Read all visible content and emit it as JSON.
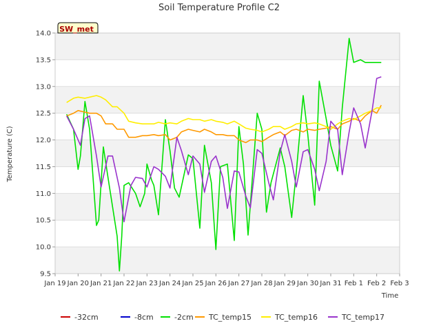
{
  "chart_data": {
    "type": "line",
    "title": "Soil Temperature Profile C2",
    "xlabel": "Time",
    "ylabel": "Temperature (C)",
    "badge": "SW_met",
    "ylim": [
      9.5,
      14.0
    ],
    "yticks": [
      "9.5",
      "10.0",
      "10.5",
      "11.0",
      "11.5",
      "12.0",
      "12.5",
      "13.0",
      "13.5",
      "14.0"
    ],
    "xlim": [
      0,
      15
    ],
    "xticks": [
      "Jan 19",
      "Jan 20",
      "Jan 21",
      "Jan 22",
      "Jan 23",
      "Jan 24",
      "Jan 25",
      "Jan 26",
      "Jan 27",
      "Jan 28",
      "Jan 29",
      "Jan 30",
      "Jan 31",
      "Feb 1",
      "Feb 2",
      "Feb 3"
    ],
    "grid": "horizontal bands",
    "legend_position": "bottom",
    "series": [
      {
        "name": "-32cm",
        "color": "#cc0000",
        "x": [],
        "y": []
      },
      {
        "name": "-8cm",
        "color": "#0000cc",
        "x": [],
        "y": []
      },
      {
        "name": "-2cm",
        "color": "#00e000",
        "x": [
          0.5,
          0.8,
          1.0,
          1.1,
          1.3,
          1.5,
          1.8,
          1.9,
          2.1,
          2.3,
          2.7,
          2.8,
          2.9,
          3.0,
          3.2,
          3.5,
          3.7,
          3.9,
          4.0,
          4.2,
          4.3,
          4.5,
          4.8,
          5.0,
          5.2,
          5.4,
          5.8,
          6.0,
          6.3,
          6.5,
          6.8,
          7.0,
          7.2,
          7.5,
          7.8,
          8.0,
          8.2,
          8.4,
          8.8,
          9.0,
          9.2,
          9.4,
          9.8,
          10.0,
          10.3,
          10.5,
          10.8,
          11.0,
          11.3,
          11.5,
          11.8,
          12.0,
          12.3,
          12.5,
          12.8,
          13.0,
          13.3,
          13.5,
          13.8,
          14.0,
          14.2
        ],
        "y": [
          12.48,
          12.2,
          11.45,
          11.7,
          12.72,
          12.2,
          10.4,
          10.5,
          11.87,
          11.3,
          10.2,
          9.55,
          10.2,
          11.15,
          11.2,
          11.0,
          10.75,
          11.0,
          11.55,
          11.25,
          11.15,
          10.6,
          12.38,
          11.8,
          11.1,
          10.93,
          11.72,
          11.65,
          10.35,
          11.9,
          11.2,
          9.95,
          11.5,
          11.55,
          10.12,
          12.25,
          11.55,
          10.22,
          12.5,
          12.2,
          10.65,
          11.2,
          11.85,
          11.5,
          10.55,
          11.4,
          12.83,
          12.1,
          10.78,
          13.1,
          12.4,
          11.9,
          11.42,
          12.6,
          13.9,
          13.45,
          13.5,
          13.45,
          13.45,
          13.45,
          13.45
        ]
      },
      {
        "name": "TC_temp15",
        "color": "#ff9900",
        "x": [
          0.5,
          0.8,
          1.0,
          1.3,
          1.5,
          1.8,
          2.0,
          2.2,
          2.5,
          2.7,
          3.0,
          3.2,
          3.5,
          3.8,
          4.0,
          4.3,
          4.5,
          4.8,
          5.0,
          5.3,
          5.5,
          5.8,
          6.0,
          6.3,
          6.5,
          6.8,
          7.0,
          7.3,
          7.5,
          7.8,
          8.0,
          8.3,
          8.5,
          8.8,
          9.0,
          9.3,
          9.5,
          9.8,
          10.0,
          10.3,
          10.5,
          10.8,
          11.0,
          11.3,
          11.5,
          11.8,
          12.0,
          12.3,
          12.5,
          12.8,
          13.0,
          13.3,
          13.5,
          13.8,
          14.0,
          14.2
        ],
        "y": [
          12.45,
          12.5,
          12.55,
          12.52,
          12.5,
          12.5,
          12.45,
          12.3,
          12.3,
          12.2,
          12.2,
          12.05,
          12.05,
          12.08,
          12.08,
          12.1,
          12.08,
          12.1,
          12.0,
          12.05,
          12.15,
          12.2,
          12.18,
          12.15,
          12.2,
          12.15,
          12.1,
          12.1,
          12.08,
          12.08,
          12.0,
          11.95,
          12.0,
          12.0,
          11.97,
          12.05,
          12.1,
          12.15,
          12.08,
          12.18,
          12.2,
          12.15,
          12.2,
          12.18,
          12.2,
          12.22,
          12.25,
          12.2,
          12.3,
          12.35,
          12.4,
          12.35,
          12.45,
          12.55,
          12.5,
          12.65
        ]
      },
      {
        "name": "TC_temp16",
        "color": "#ffee00",
        "x": [
          0.5,
          0.8,
          1.0,
          1.3,
          1.5,
          1.8,
          2.0,
          2.2,
          2.5,
          2.7,
          3.0,
          3.2,
          3.5,
          3.8,
          4.0,
          4.3,
          4.5,
          4.8,
          5.0,
          5.3,
          5.5,
          5.8,
          6.0,
          6.3,
          6.5,
          6.8,
          7.0,
          7.3,
          7.5,
          7.8,
          8.0,
          8.3,
          8.5,
          8.8,
          9.0,
          9.3,
          9.5,
          9.8,
          10.0,
          10.3,
          10.5,
          10.8,
          11.0,
          11.3,
          11.5,
          11.8,
          12.0,
          12.3,
          12.5,
          12.8,
          13.0,
          13.3,
          13.5,
          13.8,
          14.0,
          14.2
        ],
        "y": [
          12.7,
          12.78,
          12.8,
          12.78,
          12.8,
          12.83,
          12.8,
          12.75,
          12.62,
          12.62,
          12.5,
          12.35,
          12.32,
          12.3,
          12.3,
          12.3,
          12.33,
          12.3,
          12.32,
          12.3,
          12.35,
          12.4,
          12.38,
          12.38,
          12.35,
          12.38,
          12.35,
          12.33,
          12.3,
          12.35,
          12.3,
          12.22,
          12.2,
          12.18,
          12.15,
          12.2,
          12.25,
          12.25,
          12.2,
          12.25,
          12.3,
          12.32,
          12.3,
          12.32,
          12.3,
          12.25,
          12.2,
          12.3,
          12.35,
          12.4,
          12.38,
          12.45,
          12.5,
          12.55,
          12.6,
          12.6
        ]
      },
      {
        "name": "TC_temp17",
        "color": "#9933cc",
        "x": [
          0.5,
          0.8,
          1.1,
          1.3,
          1.5,
          1.8,
          2.0,
          2.3,
          2.5,
          2.8,
          3.0,
          3.3,
          3.5,
          3.8,
          4.0,
          4.3,
          4.5,
          4.8,
          5.0,
          5.3,
          5.5,
          5.8,
          6.0,
          6.3,
          6.5,
          6.8,
          7.0,
          7.3,
          7.5,
          7.8,
          8.0,
          8.3,
          8.5,
          8.8,
          9.0,
          9.3,
          9.5,
          9.8,
          10.0,
          10.3,
          10.5,
          10.8,
          11.0,
          11.3,
          11.5,
          11.8,
          12.0,
          12.3,
          12.5,
          12.8,
          13.0,
          13.3,
          13.5,
          13.8,
          14.0,
          14.2
        ],
        "y": [
          12.45,
          12.2,
          11.9,
          12.4,
          12.45,
          11.7,
          11.12,
          11.7,
          11.7,
          11.1,
          10.47,
          11.15,
          11.3,
          11.28,
          11.12,
          11.5,
          11.45,
          11.32,
          11.1,
          12.05,
          11.8,
          11.35,
          11.7,
          11.55,
          11.02,
          11.6,
          11.7,
          11.3,
          10.72,
          11.42,
          11.4,
          10.95,
          10.73,
          11.82,
          11.75,
          11.2,
          10.88,
          11.78,
          12.1,
          11.6,
          11.12,
          11.78,
          11.82,
          11.45,
          11.05,
          11.6,
          12.35,
          12.2,
          11.35,
          12.15,
          12.6,
          12.3,
          11.85,
          12.55,
          13.15,
          13.18
        ]
      }
    ]
  }
}
